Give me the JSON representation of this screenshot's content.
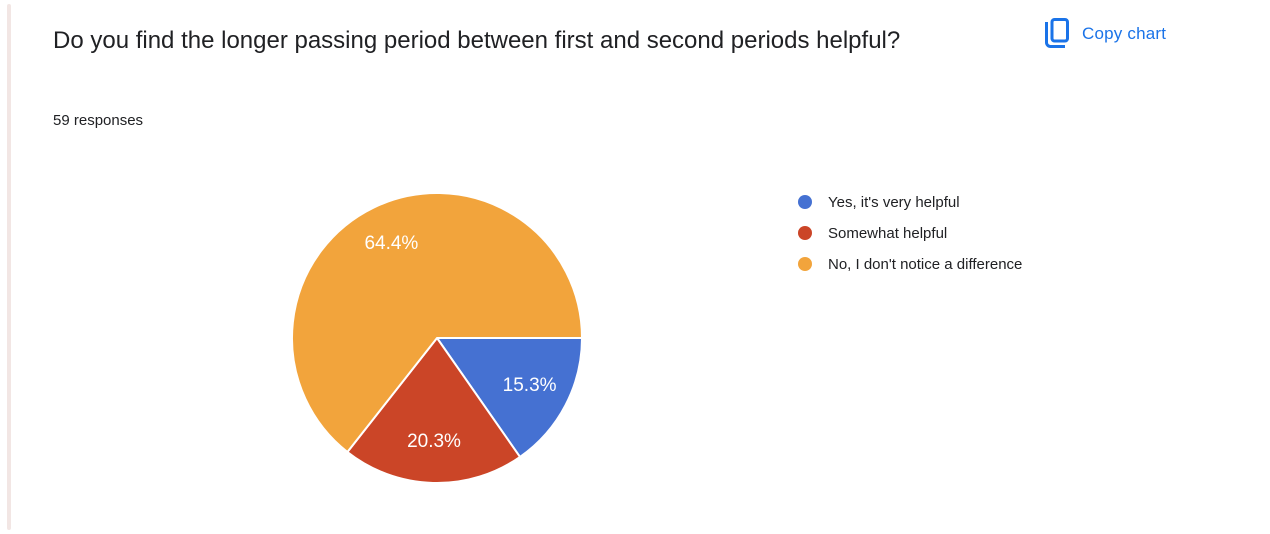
{
  "card": {
    "title": "Do you find the longer passing period between first and second periods helpful?",
    "responses_label": "59 responses",
    "copy_chart_label": "Copy chart"
  },
  "colors": {
    "link_blue": "#1a73e8",
    "text_dark": "#202124",
    "left_accent": "#f2e6e4",
    "slice_border": "#ffffff"
  },
  "chart_data": {
    "type": "pie",
    "title": "Do you find the longer passing period between first and second periods helpful?",
    "subtitle": "59 responses",
    "total_responses": 59,
    "legend_position": "right",
    "start_angle_deg": 0,
    "direction": "clockwise",
    "label_radius_fraction": 0.72,
    "series": [
      {
        "label": "Yes, it's very helpful",
        "percent": 15.3,
        "data_label": "15.3%",
        "color": "#4571d2"
      },
      {
        "label": "Somewhat helpful",
        "percent": 20.3,
        "data_label": "20.3%",
        "color": "#cb4527"
      },
      {
        "label": "No, I don't notice a difference",
        "percent": 64.4,
        "data_label": "64.4%",
        "color": "#f2a43c"
      }
    ]
  }
}
